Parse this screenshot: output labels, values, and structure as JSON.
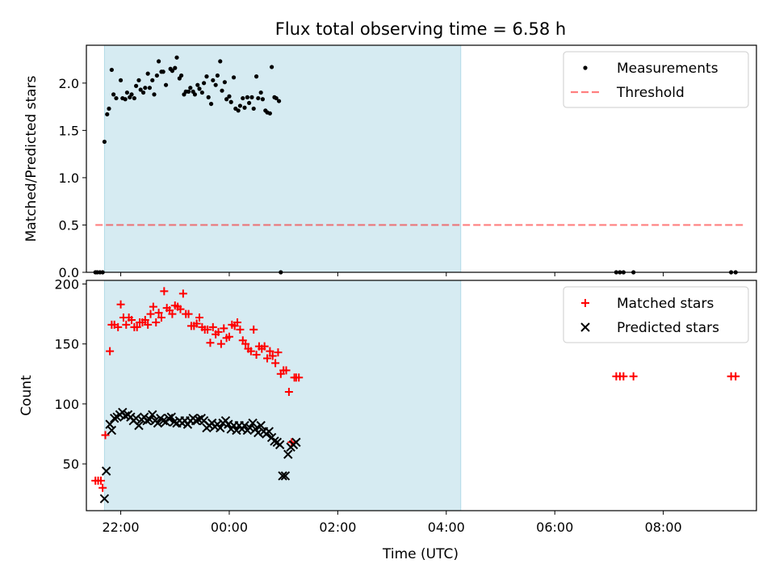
{
  "title": "Flux total observing time = 6.58 h",
  "colors": {
    "shade": "#add8e6",
    "threshold": "#ff0000",
    "matched": "#ff0000",
    "predicted": "#000000",
    "measurement": "#000000"
  },
  "chart_data": [
    {
      "type": "scatter",
      "ylabel": "Matched/Predicted stars",
      "xlim": [
        "21:22",
        "09:43"
      ],
      "ylim": [
        0,
        2.4
      ],
      "yticks": [
        0.0,
        0.5,
        1.0,
        1.5,
        2.0
      ],
      "ytick_labels": [
        "0.0",
        "0.5",
        "1.0",
        "1.5",
        "2.0"
      ],
      "shaded_interval": [
        "21:42",
        "04:16"
      ],
      "threshold": {
        "name": "Threshold",
        "value": 0.5,
        "x": [
          "21:32",
          "09:30"
        ],
        "style": "dashed"
      },
      "legend": {
        "position": "top-right",
        "entries": [
          "Measurements",
          "Threshold"
        ]
      },
      "series": [
        {
          "name": "Measurements",
          "marker": "dot",
          "points": [
            [
              "21:32",
              0
            ],
            [
              "21:34",
              0
            ],
            [
              "21:37",
              0
            ],
            [
              "21:40",
              0
            ],
            [
              "21:42",
              1.38
            ],
            [
              "21:45",
              1.67
            ],
            [
              "21:47",
              1.73
            ],
            [
              "21:50",
              2.14
            ],
            [
              "21:52",
              1.88
            ],
            [
              "21:55",
              1.84
            ],
            [
              "22:00",
              2.03
            ],
            [
              "22:02",
              1.84
            ],
            [
              "22:05",
              1.83
            ],
            [
              "22:07",
              1.9
            ],
            [
              "22:10",
              1.85
            ],
            [
              "22:12",
              1.88
            ],
            [
              "22:15",
              1.84
            ],
            [
              "22:17",
              1.97
            ],
            [
              "22:20",
              2.03
            ],
            [
              "22:22",
              1.93
            ],
            [
              "22:25",
              1.9
            ],
            [
              "22:27",
              1.95
            ],
            [
              "22:30",
              2.1
            ],
            [
              "22:32",
              1.95
            ],
            [
              "22:35",
              2.03
            ],
            [
              "22:37",
              1.88
            ],
            [
              "22:40",
              2.08
            ],
            [
              "22:42",
              2.23
            ],
            [
              "22:45",
              2.12
            ],
            [
              "22:47",
              2.12
            ],
            [
              "22:50",
              1.98
            ],
            [
              "22:55",
              2.15
            ],
            [
              "22:57",
              2.13
            ],
            [
              "23:00",
              2.16
            ],
            [
              "23:02",
              2.27
            ],
            [
              "23:05",
              2.05
            ],
            [
              "23:07",
              2.08
            ],
            [
              "23:10",
              1.88
            ],
            [
              "23:12",
              1.91
            ],
            [
              "23:15",
              1.91
            ],
            [
              "23:17",
              1.95
            ],
            [
              "23:20",
              1.91
            ],
            [
              "23:22",
              1.88
            ],
            [
              "23:25",
              1.98
            ],
            [
              "23:27",
              1.94
            ],
            [
              "23:30",
              1.9
            ],
            [
              "23:32",
              2.0
            ],
            [
              "23:35",
              2.07
            ],
            [
              "23:37",
              1.85
            ],
            [
              "23:40",
              1.78
            ],
            [
              "23:42",
              2.03
            ],
            [
              "23:45",
              1.98
            ],
            [
              "23:47",
              2.08
            ],
            [
              "23:50",
              2.23
            ],
            [
              "23:52",
              1.92
            ],
            [
              "23:55",
              2.01
            ],
            [
              "23:57",
              1.83
            ],
            [
              "00:00",
              1.86
            ],
            [
              "00:02",
              1.8
            ],
            [
              "00:05",
              2.06
            ],
            [
              "00:07",
              1.73
            ],
            [
              "00:10",
              1.71
            ],
            [
              "00:12",
              1.76
            ],
            [
              "00:15",
              1.84
            ],
            [
              "00:17",
              1.74
            ],
            [
              "00:20",
              1.85
            ],
            [
              "00:22",
              1.79
            ],
            [
              "00:25",
              1.85
            ],
            [
              "00:27",
              1.73
            ],
            [
              "00:30",
              2.07
            ],
            [
              "00:32",
              1.84
            ],
            [
              "00:35",
              1.9
            ],
            [
              "00:37",
              1.83
            ],
            [
              "00:40",
              1.71
            ],
            [
              "00:42",
              1.69
            ],
            [
              "00:45",
              1.68
            ],
            [
              "00:47",
              2.17
            ],
            [
              "00:50",
              1.85
            ],
            [
              "00:52",
              1.84
            ],
            [
              "00:55",
              1.81
            ],
            [
              "00:57",
              0
            ],
            [
              "07:08",
              0
            ],
            [
              "07:12",
              0
            ],
            [
              "07:16",
              0
            ],
            [
              "07:27",
              0
            ],
            [
              "09:15",
              0
            ],
            [
              "09:20",
              0
            ]
          ]
        }
      ]
    },
    {
      "type": "scatter",
      "ylabel": "Count",
      "xlabel": "Time (UTC)",
      "xlim": [
        "21:22",
        "09:43"
      ],
      "ylim": [
        11,
        203
      ],
      "yticks": [
        50,
        100,
        150,
        200
      ],
      "ytick_labels": [
        "50",
        "100",
        "150",
        "200"
      ],
      "xticks": [
        "22:00",
        "00:00",
        "02:00",
        "04:00",
        "06:00",
        "08:00"
      ],
      "shaded_interval": [
        "21:42",
        "04:16"
      ],
      "legend": {
        "position": "top-right",
        "entries": [
          "Matched stars",
          "Predicted stars"
        ]
      },
      "series": [
        {
          "name": "Matched stars",
          "marker": "plus",
          "points": [
            [
              "21:32",
              36
            ],
            [
              "21:35",
              36
            ],
            [
              "21:38",
              36
            ],
            [
              "21:40",
              30
            ],
            [
              "21:43",
              74
            ],
            [
              "21:48",
              144
            ],
            [
              "21:50",
              166
            ],
            [
              "21:53",
              166
            ],
            [
              "21:57",
              164
            ],
            [
              "22:00",
              183
            ],
            [
              "22:03",
              172
            ],
            [
              "22:06",
              166
            ],
            [
              "22:09",
              172
            ],
            [
              "22:12",
              170
            ],
            [
              "22:15",
              164
            ],
            [
              "22:18",
              164
            ],
            [
              "22:21",
              168
            ],
            [
              "22:24",
              168
            ],
            [
              "22:27",
              170
            ],
            [
              "22:30",
              166
            ],
            [
              "22:33",
              175
            ],
            [
              "22:36",
              181
            ],
            [
              "22:39",
              168
            ],
            [
              "22:42",
              176
            ],
            [
              "22:45",
              172
            ],
            [
              "22:48",
              194
            ],
            [
              "22:51",
              180
            ],
            [
              "22:54",
              178
            ],
            [
              "22:57",
              175
            ],
            [
              "23:00",
              182
            ],
            [
              "23:03",
              181
            ],
            [
              "23:06",
              179
            ],
            [
              "23:09",
              192
            ],
            [
              "23:12",
              175
            ],
            [
              "23:15",
              175
            ],
            [
              "23:18",
              165
            ],
            [
              "23:21",
              165
            ],
            [
              "23:24",
              167
            ],
            [
              "23:27",
              172
            ],
            [
              "23:30",
              164
            ],
            [
              "23:33",
              162
            ],
            [
              "23:36",
              162
            ],
            [
              "23:39",
              151
            ],
            [
              "23:42",
              164
            ],
            [
              "23:45",
              158
            ],
            [
              "23:48",
              160
            ],
            [
              "23:51",
              150
            ],
            [
              "23:54",
              163
            ],
            [
              "23:57",
              155
            ],
            [
              "00:00",
              156
            ],
            [
              "00:03",
              166
            ],
            [
              "00:06",
              165
            ],
            [
              "00:09",
              168
            ],
            [
              "00:12",
              162
            ],
            [
              "00:15",
              153
            ],
            [
              "00:18",
              150
            ],
            [
              "00:21",
              146
            ],
            [
              "00:24",
              144
            ],
            [
              "00:27",
              162
            ],
            [
              "00:30",
              141
            ],
            [
              "00:33",
              148
            ],
            [
              "00:36",
              146
            ],
            [
              "00:39",
              148
            ],
            [
              "00:42",
              138
            ],
            [
              "00:45",
              144
            ],
            [
              "00:48",
              140
            ],
            [
              "00:51",
              134
            ],
            [
              "00:54",
              143
            ],
            [
              "00:57",
              125
            ],
            [
              "01:00",
              128
            ],
            [
              "01:03",
              128
            ],
            [
              "01:06",
              110
            ],
            [
              "01:09",
              68
            ],
            [
              "01:12",
              122
            ],
            [
              "01:14",
              122
            ],
            [
              "01:17",
              122
            ],
            [
              "07:08",
              123
            ],
            [
              "07:12",
              123
            ],
            [
              "07:16",
              123
            ],
            [
              "07:27",
              123
            ],
            [
              "09:15",
              123
            ],
            [
              "09:20",
              123
            ]
          ]
        },
        {
          "name": "Predicted stars",
          "marker": "x",
          "points": [
            [
              "21:42",
              21
            ],
            [
              "21:44",
              44
            ],
            [
              "21:48",
              83
            ],
            [
              "21:50",
              78
            ],
            [
              "21:53",
              88
            ],
            [
              "21:56",
              89
            ],
            [
              "21:59",
              91
            ],
            [
              "22:02",
              93
            ],
            [
              "22:05",
              90
            ],
            [
              "22:08",
              91
            ],
            [
              "22:11",
              89
            ],
            [
              "22:14",
              86
            ],
            [
              "22:17",
              88
            ],
            [
              "22:20",
              82
            ],
            [
              "22:23",
              87
            ],
            [
              "22:26",
              89
            ],
            [
              "22:29",
              86
            ],
            [
              "22:32",
              87
            ],
            [
              "22:35",
              91
            ],
            [
              "22:38",
              86
            ],
            [
              "22:41",
              84
            ],
            [
              "22:44",
              88
            ],
            [
              "22:47",
              86
            ],
            [
              "22:50",
              85
            ],
            [
              "22:53",
              88
            ],
            [
              "22:56",
              89
            ],
            [
              "22:59",
              85
            ],
            [
              "23:02",
              84
            ],
            [
              "23:05",
              86
            ],
            [
              "23:08",
              84
            ],
            [
              "23:11",
              86
            ],
            [
              "23:14",
              83
            ],
            [
              "23:17",
              86
            ],
            [
              "23:20",
              88
            ],
            [
              "23:23",
              86
            ],
            [
              "23:26",
              87
            ],
            [
              "23:29",
              88
            ],
            [
              "23:32",
              86
            ],
            [
              "23:35",
              80
            ],
            [
              "23:38",
              82
            ],
            [
              "23:41",
              84
            ],
            [
              "23:44",
              81
            ],
            [
              "23:47",
              83
            ],
            [
              "23:50",
              80
            ],
            [
              "23:53",
              84
            ],
            [
              "23:56",
              86
            ],
            [
              "23:59",
              83
            ],
            [
              "00:02",
              79
            ],
            [
              "00:05",
              82
            ],
            [
              "00:08",
              78
            ],
            [
              "00:11",
              82
            ],
            [
              "00:14",
              79
            ],
            [
              "00:17",
              82
            ],
            [
              "00:20",
              78
            ],
            [
              "00:23",
              80
            ],
            [
              "00:26",
              84
            ],
            [
              "00:29",
              79
            ],
            [
              "00:32",
              76
            ],
            [
              "00:35",
              82
            ],
            [
              "00:38",
              77
            ],
            [
              "00:41",
              75
            ],
            [
              "00:44",
              77
            ],
            [
              "00:47",
              72
            ],
            [
              "00:50",
              69
            ],
            [
              "00:53",
              68
            ],
            [
              "00:56",
              66
            ],
            [
              "00:59",
              40
            ],
            [
              "01:02",
              40
            ],
            [
              "01:05",
              58
            ],
            [
              "01:08",
              64
            ],
            [
              "01:11",
              66
            ],
            [
              "01:14",
              68
            ]
          ]
        }
      ]
    }
  ]
}
